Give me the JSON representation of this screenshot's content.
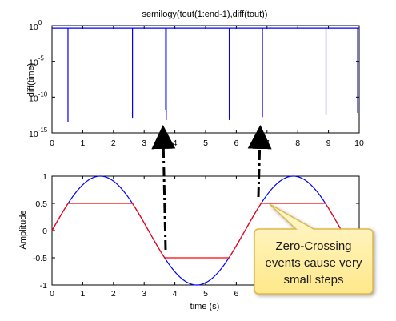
{
  "chart_data": [
    {
      "type": "line",
      "scale": "semilogy",
      "title": "semilogy(tout(1:end-1),diff(tout))",
      "ylabel": "diff(time)",
      "xlabel": "",
      "xlim": [
        0,
        10
      ],
      "ylim_exponents": [
        -15,
        0
      ],
      "xticks": [
        "0",
        "1",
        "2",
        "3",
        "4",
        "5",
        "6",
        "7",
        "8",
        "9",
        "10"
      ],
      "yticks": [
        {
          "value": 0,
          "base": "10",
          "exp": "0"
        },
        {
          "value": -5,
          "base": "10",
          "exp": "-5"
        },
        {
          "value": -10,
          "base": "10",
          "exp": "-10"
        },
        {
          "value": -15,
          "base": "10",
          "exp": "-15"
        }
      ],
      "line_color": "#0000ff",
      "baseline_exponent": -0.35,
      "spikes": [
        {
          "x": 0.52,
          "exponent": -13.5
        },
        {
          "x": 2.62,
          "exponent": -13.0
        },
        {
          "x": 3.7,
          "exponent": -11.8
        },
        {
          "x": 3.72,
          "exponent": -13.2
        },
        {
          "x": 5.77,
          "exponent": -13.2
        },
        {
          "x": 6.85,
          "exponent": -12.8
        },
        {
          "x": 8.92,
          "exponent": -12.5
        },
        {
          "x": 9.95,
          "exponent": -12.2
        }
      ]
    },
    {
      "type": "line",
      "title": "",
      "ylabel": "Amplitude",
      "xlabel": "time (s)",
      "xlim": [
        0,
        10
      ],
      "ylim": [
        -1,
        1
      ],
      "xticks": [
        "0",
        "1",
        "2",
        "3",
        "4",
        "5",
        "6"
      ],
      "yticks": [
        "1",
        "0.5",
        "0",
        "-0.5",
        "-1"
      ],
      "series": [
        {
          "color": "#0000ff",
          "function": "sin(t)",
          "saturation": null
        },
        {
          "color": "#ff0000",
          "function": "sin(t)",
          "saturation": [
            -0.5,
            0.5
          ]
        }
      ]
    }
  ],
  "annotation": {
    "text_lines": [
      "Zero-Crossing",
      "events cause very",
      "small steps"
    ],
    "fill": "#fff2a8",
    "border": "#e0b84a"
  }
}
